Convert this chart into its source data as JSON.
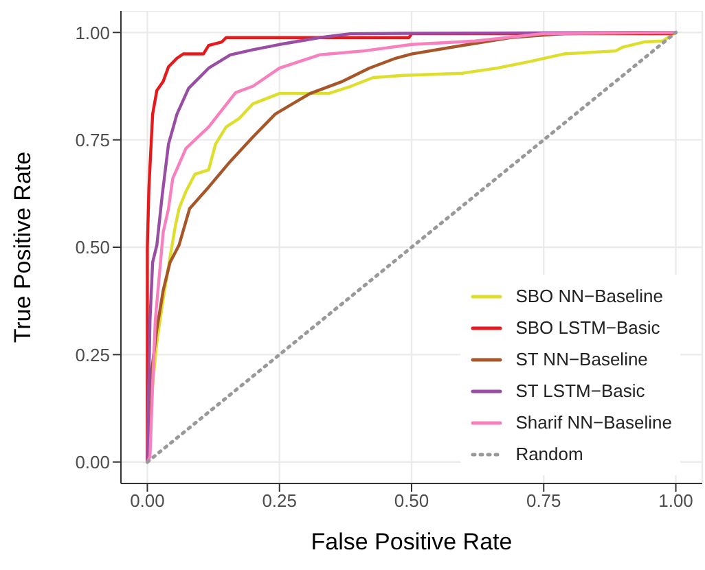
{
  "chart_data": {
    "type": "line",
    "xlabel": "False Positive Rate",
    "ylabel": "True Positive Rate",
    "xlim": [
      -0.05,
      1.05
    ],
    "ylim": [
      -0.05,
      1.05
    ],
    "xticks": [
      {
        "value": 0,
        "label": "0.00"
      },
      {
        "value": 0.25,
        "label": "0.25"
      },
      {
        "value": 0.5,
        "label": "0.50"
      },
      {
        "value": 0.75,
        "label": "0.75"
      },
      {
        "value": 1,
        "label": "1.00"
      }
    ],
    "yticks": [
      {
        "value": 0,
        "label": "0.00"
      },
      {
        "value": 0.25,
        "label": "0.25"
      },
      {
        "value": 0.5,
        "label": "0.50"
      },
      {
        "value": 0.75,
        "label": "0.75"
      },
      {
        "value": 1,
        "label": "1.00"
      }
    ],
    "grid": true,
    "legend": "bottom right",
    "marker": "none",
    "series": [
      {
        "name": "SBO NN−Baseline",
        "color": "#dede2e",
        "line_style": "solid",
        "x": [
          0,
          0.01,
          0.018,
          0.03,
          0.04,
          0.053,
          0.06,
          0.073,
          0.09,
          0.116,
          0.129,
          0.149,
          0.174,
          0.2,
          0.25,
          0.343,
          0.384,
          0.427,
          0.485,
          0.596,
          0.662,
          0.722,
          0.788,
          0.886,
          0.9,
          0.94,
          0.975,
          1
        ],
        "values": [
          0,
          0.18,
          0.28,
          0.38,
          0.455,
          0.55,
          0.59,
          0.63,
          0.67,
          0.68,
          0.74,
          0.78,
          0.8,
          0.834,
          0.858,
          0.858,
          0.874,
          0.895,
          0.9,
          0.905,
          0.917,
          0.932,
          0.95,
          0.957,
          0.966,
          0.978,
          0.98,
          1
        ]
      },
      {
        "name": "SBO LSTM−Basic",
        "color": "#e41a1c",
        "line_style": "solid",
        "x": [
          0,
          0,
          0.003,
          0.01,
          0.018,
          0.03,
          0.04,
          0.056,
          0.068,
          0.106,
          0.116,
          0.141,
          0.149,
          0.495,
          0.5,
          0.99,
          1
        ],
        "values": [
          0,
          0.5,
          0.64,
          0.81,
          0.865,
          0.886,
          0.92,
          0.94,
          0.95,
          0.95,
          0.97,
          0.978,
          0.988,
          0.988,
          0.997,
          0.997,
          1
        ]
      },
      {
        "name": "ST NN−Baseline",
        "color": "#a65628",
        "line_style": "solid",
        "x": [
          0,
          0.005,
          0.018,
          0.03,
          0.043,
          0.06,
          0.08,
          0.116,
          0.157,
          0.2,
          0.242,
          0.283,
          0.308,
          0.369,
          0.42,
          0.47,
          0.5,
          0.578,
          0.687,
          0.788,
          1
        ],
        "values": [
          0,
          0.18,
          0.31,
          0.4,
          0.465,
          0.505,
          0.59,
          0.64,
          0.7,
          0.757,
          0.81,
          0.84,
          0.858,
          0.886,
          0.917,
          0.94,
          0.95,
          0.966,
          0.988,
          0.997,
          1
        ]
      },
      {
        "name": "ST LSTM−Basic",
        "color": "#984ea3",
        "line_style": "solid",
        "x": [
          0,
          0.005,
          0.01,
          0.018,
          0.028,
          0.04,
          0.056,
          0.078,
          0.116,
          0.157,
          0.2,
          0.25,
          0.326,
          0.384,
          0.5,
          1
        ],
        "values": [
          0,
          0.33,
          0.465,
          0.505,
          0.62,
          0.74,
          0.81,
          0.87,
          0.917,
          0.948,
          0.96,
          0.972,
          0.988,
          0.997,
          0.998,
          1
        ]
      },
      {
        "name": "Sharif NN−Baseline",
        "color": "#f781bf",
        "line_style": "solid",
        "x": [
          0,
          0.005,
          0.01,
          0.015,
          0.03,
          0.04,
          0.048,
          0.073,
          0.116,
          0.167,
          0.2,
          0.25,
          0.326,
          0.41,
          0.5,
          0.62,
          0.747,
          1
        ],
        "values": [
          0,
          0.012,
          0.18,
          0.33,
          0.535,
          0.59,
          0.66,
          0.73,
          0.78,
          0.86,
          0.875,
          0.917,
          0.948,
          0.957,
          0.972,
          0.98,
          0.997,
          1
        ]
      },
      {
        "name": "Random",
        "color": "#999999",
        "line_style": "dotted",
        "x": [
          0,
          1
        ],
        "values": [
          0,
          1
        ]
      }
    ]
  }
}
